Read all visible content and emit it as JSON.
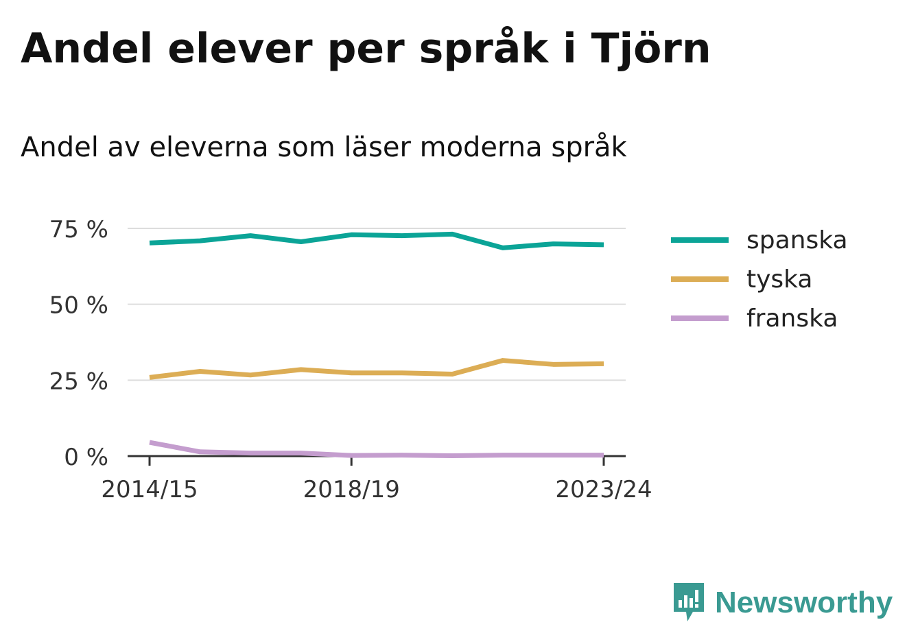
{
  "title": "Andel elever per språk i Tjörn",
  "subtitle": "Andel av eleverna som läser moderna språk",
  "brand": {
    "name": "Newsworthy",
    "icon": "newsworthy-logo-icon",
    "color": "#3a9a92"
  },
  "chart_data": {
    "type": "line",
    "x": [
      "2014/15",
      "2015/16",
      "2016/17",
      "2017/18",
      "2018/19",
      "2019/20",
      "2020/21",
      "2021/22",
      "2022/23",
      "2023/24"
    ],
    "x_tick_labels": [
      "2014/15",
      "2018/19",
      "2023/24"
    ],
    "y_tick_labels": [
      "0 %",
      "25 %",
      "50 %",
      "75 %"
    ],
    "y_ticks": [
      0,
      25,
      50,
      75
    ],
    "ylim": [
      0,
      75
    ],
    "grid": true,
    "legend_position": "right",
    "series": [
      {
        "name": "spanska",
        "color": "#0ba497",
        "values": [
          70.2,
          70.9,
          72.6,
          70.6,
          72.9,
          72.6,
          73.1,
          68.6,
          69.9,
          69.6
        ]
      },
      {
        "name": "tyska",
        "color": "#dcad55",
        "values": [
          25.9,
          27.9,
          26.7,
          28.5,
          27.4,
          27.4,
          27.0,
          31.5,
          30.2,
          30.4
        ]
      },
      {
        "name": "franska",
        "color": "#c49dce",
        "values": [
          4.5,
          1.4,
          1.0,
          1.0,
          0.2,
          0.3,
          0.1,
          0.3,
          0.3,
          0.3
        ]
      }
    ]
  }
}
